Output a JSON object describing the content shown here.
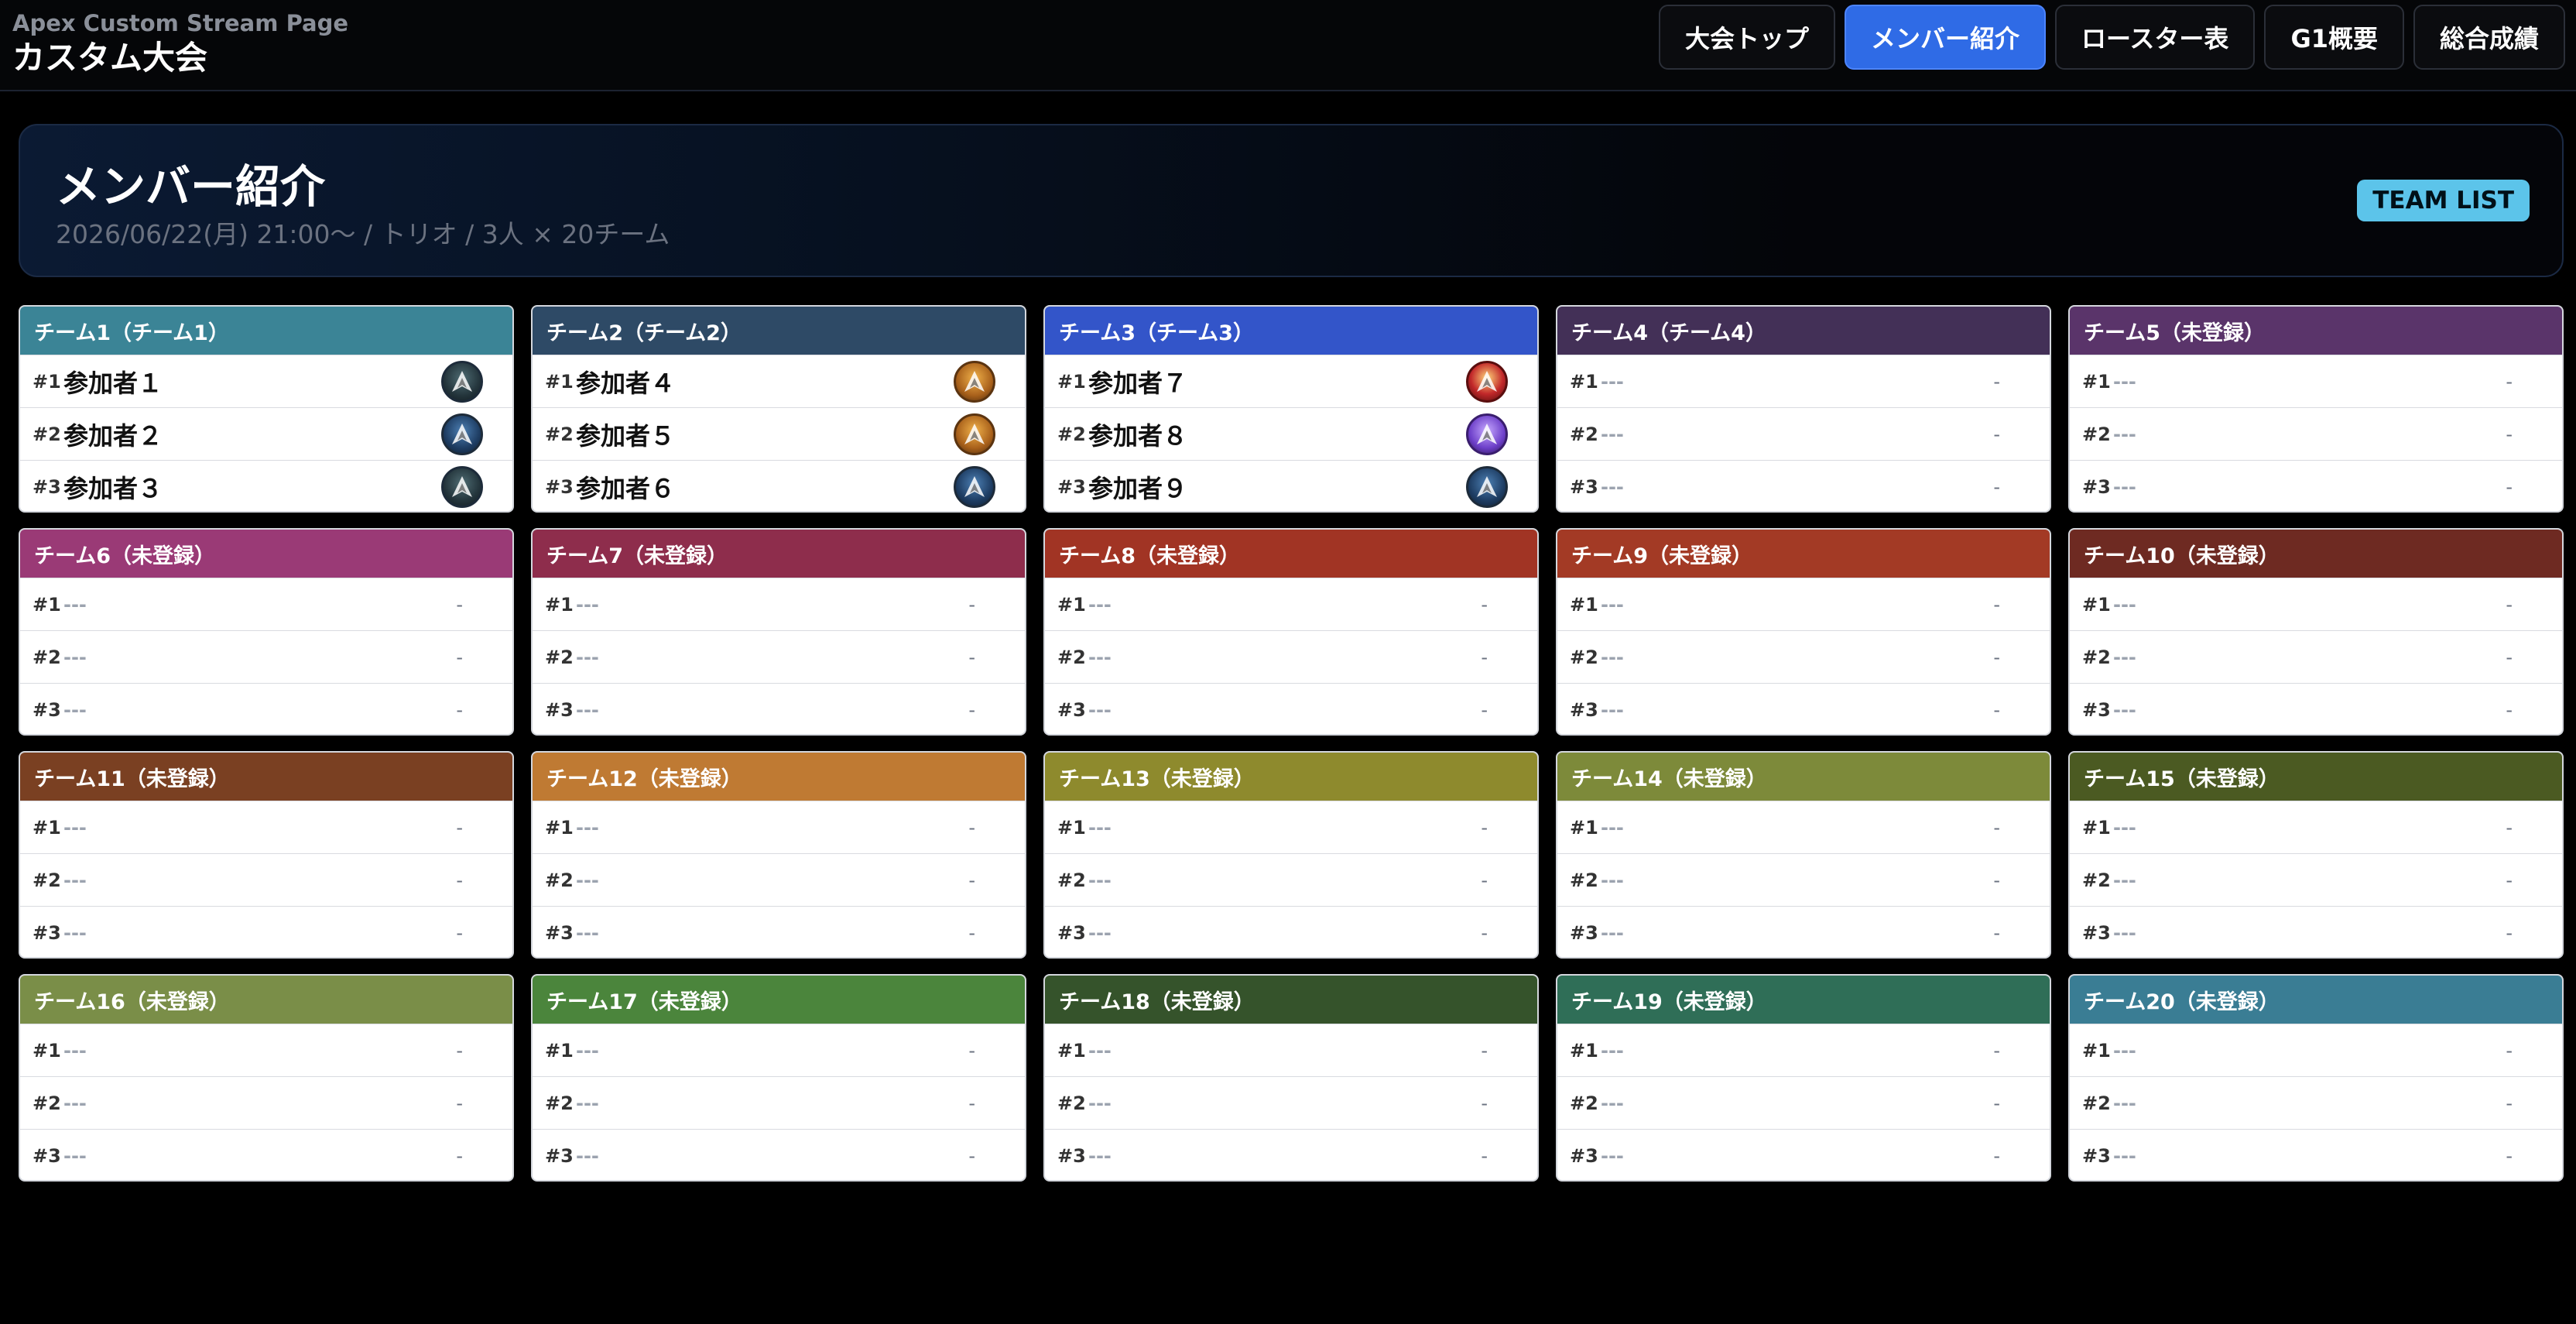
{
  "app": {
    "subtitle": "Apex Custom Stream Page",
    "title": "カスタム大会"
  },
  "nav": {
    "items": [
      {
        "label": "大会トップ",
        "active": false
      },
      {
        "label": "メンバー紹介",
        "active": true
      },
      {
        "label": "ロースター表",
        "active": false
      },
      {
        "label": "G1概要",
        "active": false
      },
      {
        "label": "総合成績",
        "active": false
      }
    ]
  },
  "hero": {
    "title": "メンバー紹介",
    "meta": "2026/06/22(月) 21:00〜 / トリオ / 3人 × 20チーム",
    "badge": "TEAM LIST"
  },
  "teams": [
    {
      "name": "チーム1（チーム1）",
      "color": "#3b8496",
      "members": [
        {
          "num": "#1",
          "name": "参加者１",
          "rank": "platinum-rank-icon"
        },
        {
          "num": "#2",
          "name": "参加者２",
          "rank": "diamond-rank-icon"
        },
        {
          "num": "#3",
          "name": "参加者３",
          "rank": "platinum-rank-icon"
        }
      ]
    },
    {
      "name": "チーム2（チーム2）",
      "color": "#2e4a66",
      "members": [
        {
          "num": "#1",
          "name": "参加者４",
          "rank": "gold-rank-icon"
        },
        {
          "num": "#2",
          "name": "参加者５",
          "rank": "gold-rank-icon"
        },
        {
          "num": "#3",
          "name": "参加者６",
          "rank": "diamond-rank-icon"
        }
      ]
    },
    {
      "name": "チーム3（チーム3）",
      "color": "#3355c9",
      "members": [
        {
          "num": "#1",
          "name": "参加者７",
          "rank": "predator-rank-icon"
        },
        {
          "num": "#2",
          "name": "参加者８",
          "rank": "master-rank-icon"
        },
        {
          "num": "#3",
          "name": "参加者９",
          "rank": "diamond-rank-icon"
        }
      ]
    },
    {
      "name": "チーム4（チーム4）",
      "color": "#433057",
      "members": [
        {
          "num": "#1",
          "name": "---",
          "rank": ""
        },
        {
          "num": "#2",
          "name": "---",
          "rank": ""
        },
        {
          "num": "#3",
          "name": "---",
          "rank": ""
        }
      ]
    },
    {
      "name": "チーム5（未登録）",
      "color": "#5a346a",
      "members": [
        {
          "num": "#1",
          "name": "---",
          "rank": ""
        },
        {
          "num": "#2",
          "name": "---",
          "rank": ""
        },
        {
          "num": "#3",
          "name": "---",
          "rank": ""
        }
      ]
    },
    {
      "name": "チーム6（未登録）",
      "color": "#9a3a76",
      "members": [
        {
          "num": "#1",
          "name": "---",
          "rank": ""
        },
        {
          "num": "#2",
          "name": "---",
          "rank": ""
        },
        {
          "num": "#3",
          "name": "---",
          "rank": ""
        }
      ]
    },
    {
      "name": "チーム7（未登録）",
      "color": "#8e2d4c",
      "members": [
        {
          "num": "#1",
          "name": "---",
          "rank": ""
        },
        {
          "num": "#2",
          "name": "---",
          "rank": ""
        },
        {
          "num": "#3",
          "name": "---",
          "rank": ""
        }
      ]
    },
    {
      "name": "チーム8（未登録）",
      "color": "#a13424",
      "members": [
        {
          "num": "#1",
          "name": "---",
          "rank": ""
        },
        {
          "num": "#2",
          "name": "---",
          "rank": ""
        },
        {
          "num": "#3",
          "name": "---",
          "rank": ""
        }
      ]
    },
    {
      "name": "チーム9（未登録）",
      "color": "#a33a25",
      "members": [
        {
          "num": "#1",
          "name": "---",
          "rank": ""
        },
        {
          "num": "#2",
          "name": "---",
          "rank": ""
        },
        {
          "num": "#3",
          "name": "---",
          "rank": ""
        }
      ]
    },
    {
      "name": "チーム10（未登録）",
      "color": "#6e2a22",
      "members": [
        {
          "num": "#1",
          "name": "---",
          "rank": ""
        },
        {
          "num": "#2",
          "name": "---",
          "rank": ""
        },
        {
          "num": "#3",
          "name": "---",
          "rank": ""
        }
      ]
    },
    {
      "name": "チーム11（未登録）",
      "color": "#7a4022",
      "members": [
        {
          "num": "#1",
          "name": "---",
          "rank": ""
        },
        {
          "num": "#2",
          "name": "---",
          "rank": ""
        },
        {
          "num": "#3",
          "name": "---",
          "rank": ""
        }
      ]
    },
    {
      "name": "チーム12（未登録）",
      "color": "#bf7a33",
      "members": [
        {
          "num": "#1",
          "name": "---",
          "rank": ""
        },
        {
          "num": "#2",
          "name": "---",
          "rank": ""
        },
        {
          "num": "#3",
          "name": "---",
          "rank": ""
        }
      ]
    },
    {
      "name": "チーム13（未登録）",
      "color": "#8e8a2d",
      "members": [
        {
          "num": "#1",
          "name": "---",
          "rank": ""
        },
        {
          "num": "#2",
          "name": "---",
          "rank": ""
        },
        {
          "num": "#3",
          "name": "---",
          "rank": ""
        }
      ]
    },
    {
      "name": "チーム14（未登録）",
      "color": "#7d8a3a",
      "members": [
        {
          "num": "#1",
          "name": "---",
          "rank": ""
        },
        {
          "num": "#2",
          "name": "---",
          "rank": ""
        },
        {
          "num": "#3",
          "name": "---",
          "rank": ""
        }
      ]
    },
    {
      "name": "チーム15（未登録）",
      "color": "#4b5a22",
      "members": [
        {
          "num": "#1",
          "name": "---",
          "rank": ""
        },
        {
          "num": "#2",
          "name": "---",
          "rank": ""
        },
        {
          "num": "#3",
          "name": "---",
          "rank": ""
        }
      ]
    },
    {
      "name": "チーム16（未登録）",
      "color": "#7a8e48",
      "members": [
        {
          "num": "#1",
          "name": "---",
          "rank": ""
        },
        {
          "num": "#2",
          "name": "---",
          "rank": ""
        },
        {
          "num": "#3",
          "name": "---",
          "rank": ""
        }
      ]
    },
    {
      "name": "チーム17（未登録）",
      "color": "#4b853c",
      "members": [
        {
          "num": "#1",
          "name": "---",
          "rank": ""
        },
        {
          "num": "#2",
          "name": "---",
          "rank": ""
        },
        {
          "num": "#3",
          "name": "---",
          "rank": ""
        }
      ]
    },
    {
      "name": "チーム18（未登録）",
      "color": "#35532b",
      "members": [
        {
          "num": "#1",
          "name": "---",
          "rank": ""
        },
        {
          "num": "#2",
          "name": "---",
          "rank": ""
        },
        {
          "num": "#3",
          "name": "---",
          "rank": ""
        }
      ]
    },
    {
      "name": "チーム19（未登録）",
      "color": "#2f6e57",
      "members": [
        {
          "num": "#1",
          "name": "---",
          "rank": ""
        },
        {
          "num": "#2",
          "name": "---",
          "rank": ""
        },
        {
          "num": "#3",
          "name": "---",
          "rank": ""
        }
      ]
    },
    {
      "name": "チーム20（未登録）",
      "color": "#3a7d94",
      "members": [
        {
          "num": "#1",
          "name": "---",
          "rank": ""
        },
        {
          "num": "#2",
          "name": "---",
          "rank": ""
        },
        {
          "num": "#3",
          "name": "---",
          "rank": ""
        }
      ]
    }
  ],
  "empty_dash": "-"
}
